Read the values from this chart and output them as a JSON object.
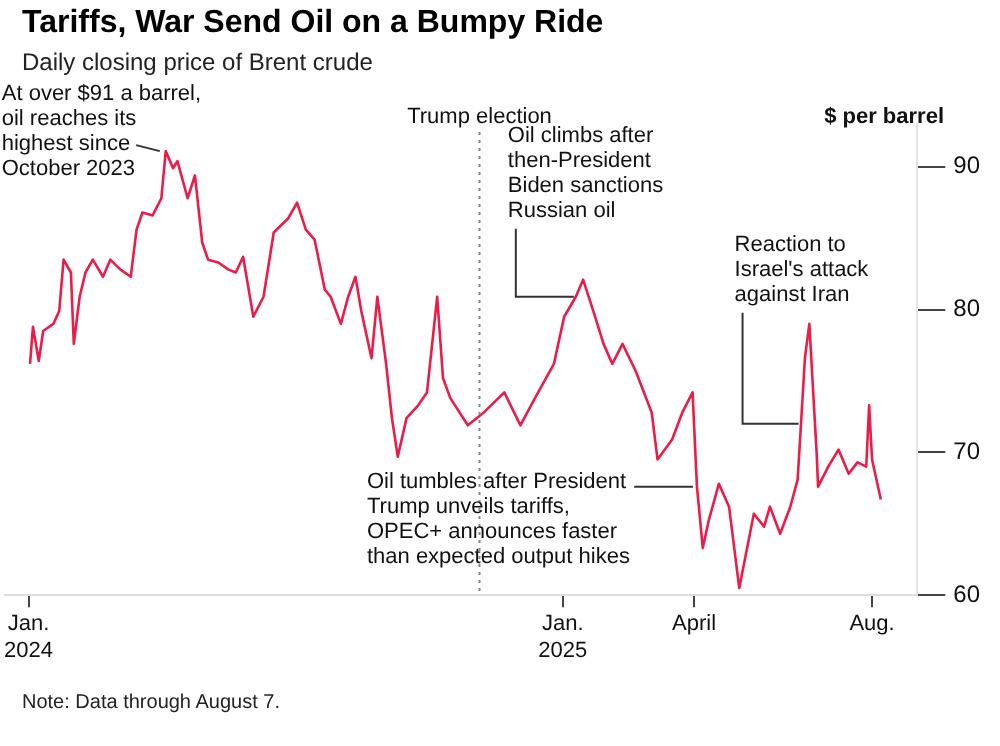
{
  "chart_data": {
    "type": "line",
    "title": "Tariffs, War Send Oil on a Bumpy Ride",
    "subtitle": "Daily closing price of Brent crude",
    "ylabel": "$ per barrel",
    "x": [
      "2024-01-02",
      "2024-01-04",
      "2024-01-08",
      "2024-01-11",
      "2024-01-18",
      "2024-01-22",
      "2024-01-25",
      "2024-01-30",
      "2024-02-01",
      "2024-02-05",
      "2024-02-09",
      "2024-02-14",
      "2024-02-21",
      "2024-02-26",
      "2024-03-04",
      "2024-03-11",
      "2024-03-15",
      "2024-03-19",
      "2024-03-26",
      "2024-04-01",
      "2024-04-04",
      "2024-04-09",
      "2024-04-12",
      "2024-04-19",
      "2024-04-24",
      "2024-04-29",
      "2024-05-03",
      "2024-05-10",
      "2024-05-17",
      "2024-05-22",
      "2024-05-27",
      "2024-06-03",
      "2024-06-10",
      "2024-06-17",
      "2024-06-24",
      "2024-06-27",
      "2024-07-03",
      "2024-07-09",
      "2024-07-15",
      "2024-07-22",
      "2024-07-26",
      "2024-08-02",
      "2024-08-07",
      "2024-08-12",
      "2024-08-16",
      "2024-08-23",
      "2024-08-27",
      "2024-09-02",
      "2024-09-06",
      "2024-09-10",
      "2024-09-16",
      "2024-09-24",
      "2024-09-30",
      "2024-10-07",
      "2024-10-11",
      "2024-10-16",
      "2024-10-28",
      "2024-11-08",
      "2024-11-22",
      "2024-12-03",
      "2024-12-13",
      "2024-12-26",
      "2025-01-02",
      "2025-01-10",
      "2025-01-15",
      "2025-01-22",
      "2025-01-29",
      "2025-02-04",
      "2025-02-11",
      "2025-02-20",
      "2025-03-03",
      "2025-03-07",
      "2025-03-17",
      "2025-03-24",
      "2025-03-31",
      "2025-04-03",
      "2025-04-07",
      "2025-04-11",
      "2025-04-18",
      "2025-04-25",
      "2025-05-02",
      "2025-05-12",
      "2025-05-19",
      "2025-05-23",
      "2025-05-30",
      "2025-06-06",
      "2025-06-11",
      "2025-06-16",
      "2025-06-19",
      "2025-06-24",
      "2025-06-25",
      "2025-07-02",
      "2025-07-09",
      "2025-07-16",
      "2025-07-22",
      "2025-07-28",
      "2025-07-30",
      "2025-08-01",
      "2025-08-07"
    ],
    "series": [
      {
        "color": "#ec1c48",
        "values": [
          76.2,
          78.8,
          76.4,
          78.5,
          79.0,
          79.9,
          83.5,
          82.6,
          77.6,
          80.9,
          82.6,
          83.5,
          82.3,
          83.5,
          82.8,
          82.3,
          85.6,
          86.8,
          86.6,
          87.8,
          91.1,
          89.9,
          90.4,
          87.8,
          89.4,
          84.7,
          83.5,
          83.3,
          82.8,
          82.6,
          83.7,
          79.5,
          80.9,
          85.4,
          86.1,
          86.4,
          87.5,
          85.6,
          84.9,
          81.4,
          80.9,
          79.0,
          80.9,
          82.3,
          79.9,
          76.6,
          80.9,
          76.2,
          72.4,
          69.7,
          72.4,
          73.3,
          74.2,
          80.9,
          75.2,
          73.8,
          71.9,
          72.8,
          74.2,
          71.9,
          73.8,
          76.2,
          79.5,
          80.9,
          82.1,
          79.9,
          77.6,
          76.2,
          77.6,
          75.7,
          72.8,
          69.5,
          70.9,
          72.8,
          74.2,
          67.6,
          63.3,
          65.2,
          67.8,
          66.2,
          60.5,
          65.7,
          64.8,
          66.2,
          64.3,
          66.2,
          68.1,
          76.6,
          79.0,
          70.0,
          67.6,
          69.0,
          70.2,
          68.5,
          69.3,
          69.0,
          73.3,
          69.5,
          66.7
        ]
      }
    ],
    "xlim": [
      "2023-12-16",
      "2025-09-01"
    ],
    "xticks": [
      {
        "value": "2024-01-01",
        "label": "Jan.\n2024"
      },
      {
        "value": "2025-01-01",
        "label": "Jan.\n2025"
      },
      {
        "value": "2025-04-01",
        "label": "April"
      },
      {
        "value": "2025-08-01",
        "label": "Aug."
      }
    ],
    "ylim": [
      60,
      93
    ],
    "yticks": [
      60,
      70,
      80,
      90
    ],
    "ref_lines": [
      {
        "axis": "x",
        "value": "2024-11-05",
        "label": "Trump election",
        "line_style": "dotted",
        "color": "#888888"
      }
    ],
    "annotations": [
      {
        "text": "At over $91 a barrel,\noil reaches its\nhighest since\nOctober 2023",
        "x": "2024-04-04",
        "y": 91.1
      },
      {
        "text": "Oil climbs after\nthen-President\nBiden sanctions\nRussian oil",
        "x": "2025-01-10",
        "y": 80.9
      },
      {
        "text": "Reaction to\nIsrael's attack\nagainst Iran",
        "x": "2025-06-13",
        "y": 72
      },
      {
        "text": "Oil tumbles after President\nTrump unveils tariffs,\nOPEC+ announces faster\nthan expected output hikes",
        "x": "2025-04-03",
        "y": 67.6
      },
      "Note: Data through August 7."
    ]
  }
}
